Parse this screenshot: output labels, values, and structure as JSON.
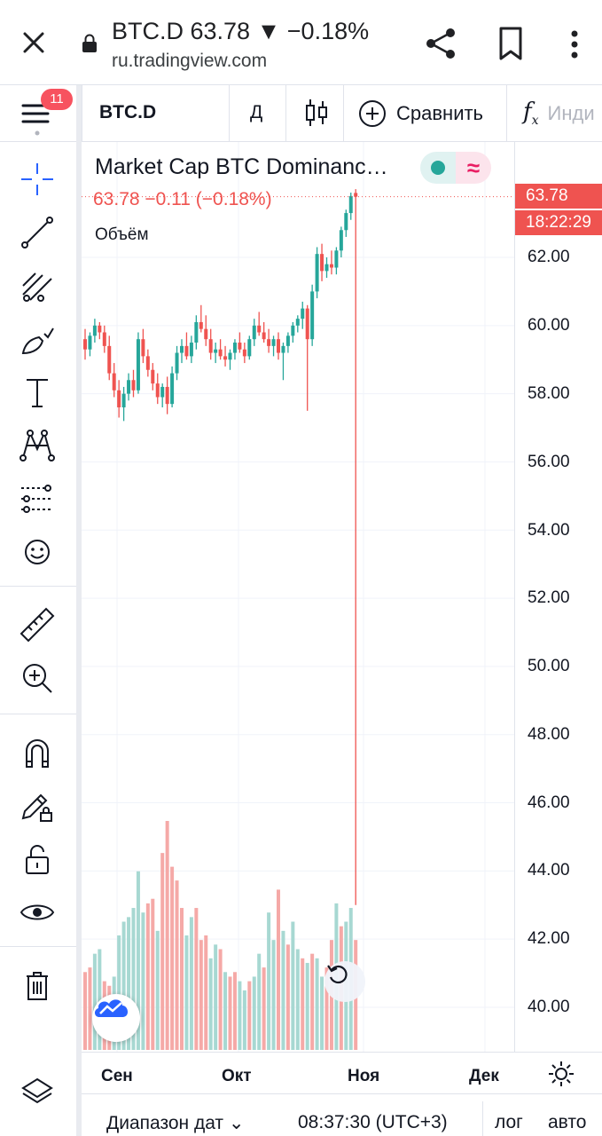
{
  "browser": {
    "title": "BTC.D 63.78 ▼ −0.18%",
    "url": "ru.tradingview.com",
    "icons": [
      "close-icon",
      "lock-icon",
      "share-icon",
      "bookmark-icon",
      "more-vert-icon"
    ]
  },
  "toolbar": {
    "notifications": "11",
    "symbol": "BTC.D",
    "interval": "Д",
    "compare": "Сравнить",
    "indicators": "Инди"
  },
  "left_tools": [
    "crosshair-icon",
    "trendline-icon",
    "fib-icon",
    "brush-icon",
    "text-icon",
    "pattern-icon",
    "forecast-icon",
    "emoji-icon",
    "ruler-icon",
    "zoom-in-icon",
    "magnet-icon",
    "lock-drawing-icon",
    "unlock-icon",
    "eye-icon",
    "trash-icon"
  ],
  "legend": {
    "title": "Market Cap BTC Dominanc…",
    "values": "63.78  −0.11 (−0.18%)",
    "volume_label": "Объём"
  },
  "price_axis": {
    "last_price": "63.78",
    "countdown": "18:22:29",
    "ticks": [
      "62.00",
      "60.00",
      "58.00",
      "56.00",
      "54.00",
      "52.00",
      "50.00",
      "48.00",
      "46.00",
      "44.00",
      "42.00",
      "40.00"
    ]
  },
  "time_axis": {
    "ticks": [
      "Сен",
      "Окт",
      "Ноя",
      "Дек"
    ]
  },
  "bottom": {
    "date_range": "Диапазон дат",
    "clock": "08:37:30 (UTC+3)",
    "log": "лог",
    "auto": "авто"
  },
  "colors": {
    "up": "#26a69a",
    "down": "#ef5350",
    "accent": "#2962ff"
  },
  "chart_data": {
    "type": "candlestick",
    "title": "Market Cap BTC Dominanc…",
    "ylim": [
      38.8,
      64.6
    ],
    "y_ticks": [
      62,
      60,
      58,
      56,
      54,
      52,
      50,
      48,
      46,
      44,
      42,
      40
    ],
    "x_ticks": [
      "Сен",
      "Окт",
      "Ноя",
      "Дек"
    ],
    "last": 63.78,
    "candles": [
      [
        59.6,
        59.9,
        59.0,
        59.3
      ],
      [
        59.3,
        59.8,
        59.1,
        59.7
      ],
      [
        59.7,
        60.2,
        59.5,
        60.0
      ],
      [
        60.0,
        60.1,
        59.6,
        59.8
      ],
      [
        59.8,
        60.0,
        59.2,
        59.4
      ],
      [
        59.4,
        59.7,
        58.4,
        58.6
      ],
      [
        58.6,
        58.9,
        57.9,
        58.1
      ],
      [
        58.1,
        58.4,
        57.3,
        57.6
      ],
      [
        57.6,
        58.2,
        57.2,
        58.0
      ],
      [
        58.0,
        58.6,
        57.8,
        58.4
      ],
      [
        58.4,
        58.7,
        57.9,
        58.1
      ],
      [
        58.1,
        59.8,
        58.0,
        59.6
      ],
      [
        59.6,
        59.9,
        58.9,
        59.1
      ],
      [
        59.1,
        59.3,
        58.5,
        58.7
      ],
      [
        58.7,
        58.9,
        58.1,
        58.3
      ],
      [
        58.3,
        58.6,
        57.7,
        57.9
      ],
      [
        57.9,
        58.3,
        57.6,
        58.2
      ],
      [
        58.2,
        58.5,
        57.4,
        57.7
      ],
      [
        57.7,
        58.8,
        57.6,
        58.6
      ],
      [
        58.6,
        59.4,
        58.4,
        59.2
      ],
      [
        59.2,
        59.6,
        58.9,
        59.4
      ],
      [
        59.4,
        59.8,
        59.0,
        59.1
      ],
      [
        59.1,
        59.7,
        58.9,
        59.5
      ],
      [
        59.5,
        60.3,
        59.3,
        60.1
      ],
      [
        60.1,
        60.6,
        59.8,
        59.9
      ],
      [
        59.9,
        60.3,
        59.4,
        59.6
      ],
      [
        59.6,
        59.9,
        59.0,
        59.2
      ],
      [
        59.2,
        59.5,
        58.9,
        59.3
      ],
      [
        59.3,
        59.6,
        59.0,
        59.1
      ],
      [
        59.1,
        59.4,
        58.8,
        59.0
      ],
      [
        59.0,
        59.3,
        58.7,
        59.2
      ],
      [
        59.2,
        59.6,
        59.0,
        59.5
      ],
      [
        59.5,
        59.8,
        59.2,
        59.3
      ],
      [
        59.3,
        59.5,
        58.9,
        59.1
      ],
      [
        59.1,
        59.7,
        59.0,
        59.6
      ],
      [
        59.6,
        60.2,
        59.4,
        60.0
      ],
      [
        60.0,
        60.4,
        59.7,
        59.8
      ],
      [
        59.8,
        60.1,
        59.5,
        59.6
      ],
      [
        59.6,
        59.9,
        59.2,
        59.4
      ],
      [
        59.4,
        59.7,
        59.1,
        59.6
      ],
      [
        59.6,
        59.8,
        59.0,
        59.2
      ],
      [
        59.2,
        59.5,
        58.4,
        59.4
      ],
      [
        59.4,
        59.8,
        59.2,
        59.7
      ],
      [
        59.7,
        60.1,
        59.5,
        60.0
      ],
      [
        60.0,
        60.3,
        59.8,
        60.2
      ],
      [
        60.2,
        60.7,
        59.9,
        60.5
      ],
      [
        60.5,
        60.6,
        57.5,
        59.6
      ],
      [
        59.6,
        61.2,
        59.4,
        61.0
      ],
      [
        61.0,
        62.3,
        60.8,
        62.1
      ],
      [
        62.1,
        62.4,
        61.3,
        61.6
      ],
      [
        61.6,
        62.0,
        61.4,
        61.8
      ],
      [
        61.8,
        62.2,
        61.5,
        61.7
      ],
      [
        61.7,
        62.3,
        61.5,
        62.2
      ],
      [
        62.2,
        62.9,
        62.0,
        62.8
      ],
      [
        62.8,
        63.4,
        62.6,
        63.3
      ],
      [
        63.3,
        63.9,
        63.1,
        63.8
      ],
      [
        63.89,
        64.0,
        43.0,
        63.78
      ]
    ],
    "volume": [
      [
        0,
        0.34
      ],
      [
        0,
        0.36
      ],
      [
        1,
        0.42
      ],
      [
        1,
        0.44
      ],
      [
        0,
        0.3
      ],
      [
        0,
        0.28
      ],
      [
        1,
        0.32
      ],
      [
        1,
        0.5
      ],
      [
        1,
        0.56
      ],
      [
        1,
        0.58
      ],
      [
        1,
        0.62
      ],
      [
        1,
        0.78
      ],
      [
        1,
        0.6
      ],
      [
        0,
        0.64
      ],
      [
        0,
        0.66
      ],
      [
        1,
        0.52
      ],
      [
        0,
        0.86
      ],
      [
        0,
        1.0
      ],
      [
        0,
        0.8
      ],
      [
        0,
        0.74
      ],
      [
        0,
        0.62
      ],
      [
        1,
        0.5
      ],
      [
        1,
        0.58
      ],
      [
        0,
        0.62
      ],
      [
        0,
        0.48
      ],
      [
        0,
        0.5
      ],
      [
        1,
        0.4
      ],
      [
        1,
        0.46
      ],
      [
        0,
        0.44
      ],
      [
        1,
        0.34
      ],
      [
        0,
        0.32
      ],
      [
        0,
        0.34
      ],
      [
        1,
        0.3
      ],
      [
        1,
        0.26
      ],
      [
        0,
        0.3
      ],
      [
        1,
        0.32
      ],
      [
        1,
        0.42
      ],
      [
        0,
        0.36
      ],
      [
        1,
        0.6
      ],
      [
        1,
        0.48
      ],
      [
        0,
        0.7
      ],
      [
        1,
        0.52
      ],
      [
        0,
        0.46
      ],
      [
        1,
        0.56
      ],
      [
        1,
        0.44
      ],
      [
        0,
        0.4
      ],
      [
        1,
        0.38
      ],
      [
        0,
        0.42
      ],
      [
        1,
        0.4
      ],
      [
        1,
        0.32
      ],
      [
        0,
        0.36
      ],
      [
        0,
        0.48
      ],
      [
        1,
        0.64
      ],
      [
        0,
        0.54
      ],
      [
        1,
        0.56
      ],
      [
        1,
        0.62
      ],
      [
        0,
        0.48
      ]
    ]
  }
}
